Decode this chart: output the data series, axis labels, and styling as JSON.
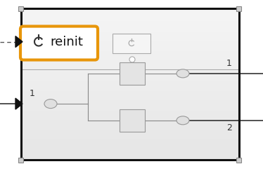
{
  "fig_w": 3.74,
  "fig_h": 2.54,
  "dpi": 100,
  "highlight_color": "#E8960A",
  "block_border": "#111111",
  "line_color": "#888888",
  "ext_line_color": "#333333",
  "corner_fill": "#cccccc",
  "corner_edge": "#888888",
  "box_face": "#e4e4e4",
  "box_edge": "#999999",
  "ell_face": "#e0e0e0",
  "ell_edge": "#999999",
  "port1_label": "1",
  "out1_label": "1",
  "out2_label": "2",
  "reinit_text": "reinit"
}
